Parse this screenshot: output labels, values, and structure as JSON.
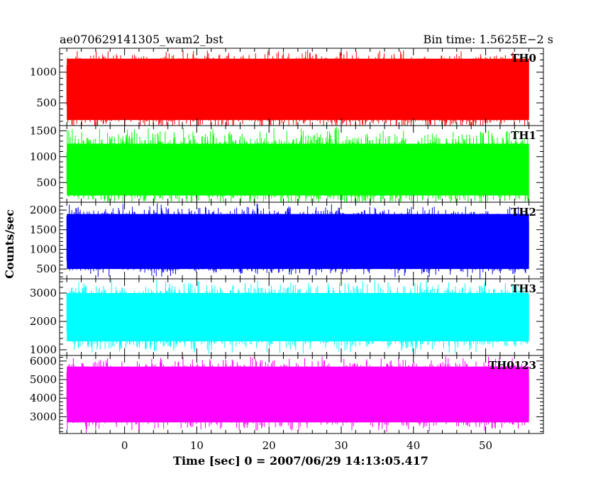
{
  "chart_data": {
    "type": "line",
    "title_left": "ae070629141305_wam2_bst",
    "title_right": "Bin time: 1.5625E−2 s",
    "xlabel": "Time [sec] 0 = 2007/06/29 14:13:05.417",
    "ylabel": "Counts/sec",
    "xlim": [
      -9,
      58
    ],
    "x_data_range": [
      -8,
      56
    ],
    "xticks": [
      0,
      10,
      20,
      30,
      40,
      50
    ],
    "xtick_labels": [
      "0",
      "10",
      "20",
      "30",
      "40",
      "50"
    ],
    "grid": false,
    "legend": "none",
    "panels": [
      {
        "label": "TH0",
        "color": "#ff0000",
        "ylim": [
          130,
          1390
        ],
        "yticks": [
          500,
          1000
        ],
        "ytick_labels": [
          "500",
          "1000"
        ],
        "typical_range": [
          220,
          1220
        ],
        "max": 1390,
        "min": 0
      },
      {
        "label": "TH1",
        "color": "#00ff00",
        "ylim": [
          120,
          1600
        ],
        "yticks": [
          500,
          1000,
          1500
        ],
        "ytick_labels": [
          "500",
          "1000",
          "1500"
        ],
        "typical_range": [
          250,
          1250
        ],
        "max": 1600,
        "min": 0
      },
      {
        "label": "TH2",
        "color": "#0000ff",
        "ylim": [
          250,
          2200
        ],
        "yticks": [
          500,
          1000,
          1500,
          2000
        ],
        "ytick_labels": [
          "500",
          "1000",
          "1500",
          "2000"
        ],
        "typical_range": [
          500,
          1900
        ],
        "max": 2200,
        "min": 250
      },
      {
        "label": "TH3",
        "color": "#00ffff",
        "ylim": [
          800,
          3500
        ],
        "yticks": [
          1000,
          2000,
          3000
        ],
        "ytick_labels": [
          "1000",
          "2000",
          "3000"
        ],
        "typical_range": [
          1300,
          3000
        ],
        "max": 3500,
        "min": 800
      },
      {
        "label": "TH0123",
        "color": "#ff00ff",
        "ylim": [
          2100,
          6300
        ],
        "yticks": [
          3000,
          4000,
          5000,
          6000
        ],
        "ytick_labels": [
          "3000",
          "4000",
          "5000",
          "6000"
        ],
        "typical_range": [
          2700,
          5700
        ],
        "max": 6300,
        "min": 2100
      }
    ]
  }
}
